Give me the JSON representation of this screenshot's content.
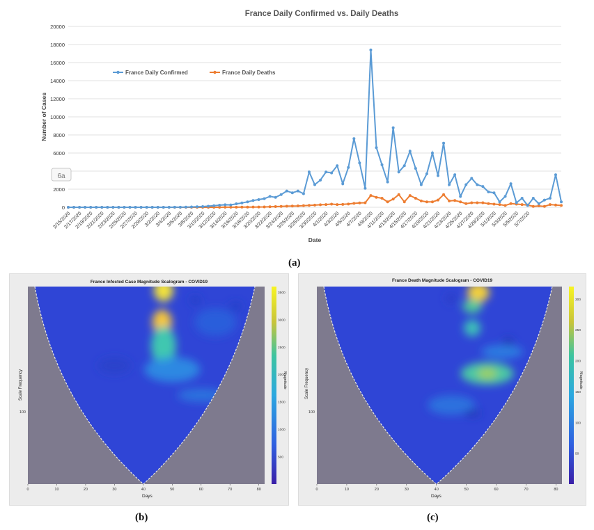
{
  "chart_data": [
    {
      "type": "line",
      "title": "France Daily Confirmed vs. Daily Deaths",
      "xlabel": "Date",
      "ylabel": "Number of Cases",
      "ylim": [
        0,
        20000
      ],
      "yticks": [
        0,
        2000,
        4000,
        6000,
        8000,
        10000,
        12000,
        14000,
        16000,
        18000,
        20000
      ],
      "x_tick_labels": [
        "2/15/2020",
        "2/17/2020",
        "2/19/2020",
        "2/21/2020",
        "2/23/2020",
        "2/25/2020",
        "2/27/2020",
        "2/29/2020",
        "3/2/2020",
        "3/4/2020",
        "3/6/2020",
        "3/8/2020",
        "3/10/2020",
        "3/12/2020",
        "3/14/2020",
        "3/16/2020",
        "3/18/2020",
        "3/20/2020",
        "3/22/2020",
        "3/24/2020",
        "3/26/2020",
        "3/28/2020",
        "3/30/2020",
        "4/1/2020",
        "4/3/2020",
        "4/5/2020",
        "4/7/2020",
        "4/9/2020",
        "4/11/2020",
        "4/13/2020",
        "4/15/2020",
        "4/17/2020",
        "4/19/2020",
        "4/21/2020",
        "4/23/2020",
        "4/25/2020",
        "4/27/2020",
        "4/29/2020",
        "5/1/2020",
        "5/3/2020",
        "5/5/2020",
        "5/7/2020"
      ],
      "legend": "top-left",
      "overlay_label": "6a",
      "series": [
        {
          "name": "France Daily Confirmed",
          "color": "#5b9bd5",
          "values": [
            0,
            0,
            0,
            0,
            0,
            0,
            0,
            0,
            0,
            0,
            0,
            0,
            0,
            0,
            0,
            0,
            0,
            2,
            2,
            5,
            10,
            20,
            40,
            60,
            80,
            120,
            170,
            230,
            280,
            260,
            380,
            480,
            600,
            750,
            850,
            950,
            1200,
            1100,
            1400,
            1800,
            1600,
            1800,
            1500,
            3900,
            2500,
            3000,
            3900,
            3800,
            4600,
            2600,
            4400,
            7600,
            4900,
            2100,
            17400,
            6600,
            4700,
            2800,
            8800,
            3900,
            4600,
            6200,
            4300,
            2500,
            3700,
            6000,
            3500,
            7100,
            2500,
            3600,
            1200,
            2500,
            3200,
            2500,
            2300,
            1700,
            1600,
            600,
            1200,
            2600,
            500,
            1000,
            200,
            1000,
            400,
            800,
            1000,
            3600,
            600
          ]
        },
        {
          "name": "France Daily Deaths",
          "color": "#ed7d31",
          "values": [
            0,
            0,
            0,
            0,
            0,
            0,
            0,
            0,
            0,
            0,
            0,
            0,
            0,
            0,
            0,
            0,
            0,
            0,
            0,
            0,
            0,
            0,
            0,
            0,
            0,
            0,
            2,
            3,
            5,
            8,
            10,
            15,
            20,
            25,
            30,
            40,
            60,
            80,
            100,
            120,
            130,
            150,
            180,
            210,
            240,
            280,
            300,
            350,
            300,
            320,
            360,
            430,
            480,
            500,
            1300,
            1100,
            1000,
            600,
            900,
            1400,
            600,
            1300,
            1000,
            700,
            600,
            600,
            800,
            1400,
            700,
            750,
            600,
            400,
            500,
            500,
            500,
            400,
            350,
            300,
            200,
            400,
            350,
            300,
            250,
            100,
            150,
            100,
            300,
            250,
            200
          ]
        }
      ]
    },
    {
      "type": "heatmap",
      "title": "France Infected Case Magnitude Scalogram - COVID19",
      "xlabel": "Days",
      "ylabel": "Scale Frequency",
      "xlim": [
        0,
        82
      ],
      "xticks": [
        0,
        10,
        20,
        30,
        40,
        50,
        60,
        70,
        80
      ],
      "y_tick_label": "100",
      "colorbar_label": "Magnitude",
      "colorbar_ticks": [
        500,
        1000,
        1500,
        2000,
        2500,
        3000,
        3500
      ],
      "colorbar_range": [
        0,
        3600
      ],
      "cone_apex_day": 40,
      "hotspots": [
        {
          "day": 47,
          "level": "max",
          "value": 3400
        },
        {
          "day": 45,
          "level": "high",
          "value": 2800
        }
      ]
    },
    {
      "type": "heatmap",
      "title": "France Death Magnitude Scalogram - COVID19",
      "xlabel": "Days",
      "ylabel": "Scale Frequency",
      "xlim": [
        0,
        82
      ],
      "xticks": [
        0,
        10,
        20,
        30,
        40,
        50,
        60,
        70,
        80
      ],
      "y_tick_label": "100",
      "colorbar_label": "Magnitude",
      "colorbar_ticks": [
        50,
        100,
        150,
        200,
        250,
        300
      ],
      "colorbar_range": [
        0,
        320
      ],
      "cone_apex_day": 40,
      "hotspots": [
        {
          "day": 53,
          "level": "max",
          "value": 310
        },
        {
          "day": 55,
          "level": "high",
          "value": 230
        }
      ]
    }
  ],
  "labels": {
    "a": "(a)",
    "b": "(b)",
    "c": "(c)"
  }
}
